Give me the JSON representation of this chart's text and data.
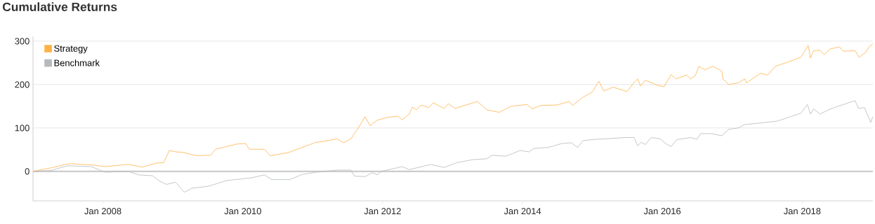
{
  "chart_data": {
    "type": "line",
    "title": "Cumulative Returns",
    "xlim": [
      "2007-01-01",
      "2019-01-05"
    ],
    "xticks": [
      {
        "value": "2008-01-01",
        "label": "Jan 2008"
      },
      {
        "value": "2010-01-01",
        "label": "Jan 2010"
      },
      {
        "value": "2012-01-01",
        "label": "Jan 2012"
      },
      {
        "value": "2014-01-01",
        "label": "Jan 2014"
      },
      {
        "value": "2016-01-01",
        "label": "Jan 2016"
      },
      {
        "value": "2018-01-01",
        "label": "Jan 2018"
      }
    ],
    "ylim": [
      -68,
      311
    ],
    "yticks": [
      0,
      100,
      200,
      300
    ],
    "grid": "y",
    "legend": "top left",
    "marker": "none",
    "line_style": "solid",
    "ref_lines": [
      {
        "axis": "y",
        "value": 0,
        "color": "#cccccc"
      }
    ],
    "series": [
      {
        "name": "Strategy",
        "color": "#ffb347",
        "x": [
          "2007-01-01",
          "2007-04-03",
          "2007-07-12",
          "2007-11-01",
          "2008-01-13",
          "2008-05-13",
          "2008-07-25",
          "2008-10-07",
          "2008-11-13",
          "2008-12-13",
          "2009-01-15",
          "2009-02-21",
          "2009-05-04",
          "2009-07-16",
          "2009-08-12",
          "2009-12-01",
          "2010-01-16",
          "2010-02-04",
          "2010-04-24",
          "2010-05-24",
          "2010-08-24",
          "2010-10-25",
          "2011-01-18",
          "2011-02-25",
          "2011-05-07",
          "2011-06-13",
          "2011-07-19",
          "2011-08-15",
          "2011-09-21",
          "2011-10-01",
          "2011-10-28",
          "2011-12-04",
          "2012-02-01",
          "2012-03-22",
          "2012-04-13",
          "2012-05-19",
          "2012-06-04",
          "2012-06-25",
          "2012-07-22",
          "2012-08-28",
          "2012-09-22",
          "2012-11-18",
          "2012-12-09",
          "2013-01-13",
          "2013-05-10",
          "2013-06-28",
          "2013-09-01",
          "2013-11-01",
          "2014-01-25",
          "2014-02-19",
          "2014-04-07",
          "2014-07-01",
          "2014-09-01",
          "2014-09-19",
          "2014-11-13",
          "2015-01-01",
          "2015-02-04",
          "2015-03-01",
          "2015-04-19",
          "2015-07-01",
          "2015-08-07",
          "2015-08-25",
          "2015-09-10",
          "2015-10-04",
          "2015-12-10",
          "2016-01-10",
          "2016-02-16",
          "2016-03-13",
          "2016-05-07",
          "2016-05-28",
          "2016-06-22",
          "2016-07-10",
          "2016-08-10",
          "2016-09-22",
          "2016-11-07",
          "2016-11-13",
          "2016-12-13",
          "2017-02-01",
          "2017-03-07",
          "2017-03-16",
          "2017-05-28",
          "2017-07-04",
          "2017-08-13",
          "2017-11-07",
          "2017-12-25",
          "2018-02-01",
          "2018-02-13",
          "2018-03-01",
          "2018-04-04",
          "2018-04-25",
          "2018-05-28",
          "2018-07-13",
          "2018-08-04",
          "2018-10-04",
          "2018-10-25",
          "2018-11-28",
          "2018-12-16",
          "2019-01-04"
        ],
        "values": [
          0,
          8,
          18,
          15,
          11,
          16,
          10,
          19,
          20,
          48,
          45,
          44,
          36,
          37,
          51,
          63,
          64,
          51,
          51,
          36,
          43,
          53,
          67,
          69,
          75,
          66,
          75,
          92,
          118,
          126,
          105,
          118,
          125,
          127,
          119,
          132,
          148,
          142,
          153,
          147,
          158,
          145,
          156,
          145,
          161,
          142,
          136,
          150,
          154,
          144,
          152,
          153,
          161,
          152,
          171,
          183,
          208,
          185,
          194,
          184,
          205,
          213,
          197,
          210,
          198,
          195,
          223,
          213,
          222,
          213,
          221,
          242,
          234,
          242,
          231,
          213,
          200,
          204,
          213,
          204,
          226,
          222,
          242,
          255,
          263,
          290,
          261,
          278,
          279,
          269,
          282,
          287,
          277,
          278,
          263,
          274,
          287,
          294
        ]
      },
      {
        "name": "Benchmark",
        "color": "#b4b9be",
        "x": [
          "2007-01-01",
          "2007-04-03",
          "2007-07-01",
          "2007-11-01",
          "2008-01-13",
          "2008-05-13",
          "2008-07-04",
          "2008-09-16",
          "2008-10-22",
          "2008-11-28",
          "2009-01-15",
          "2009-03-01",
          "2009-04-10",
          "2009-07-07",
          "2009-10-10",
          "2010-02-13",
          "2010-04-24",
          "2010-06-01",
          "2010-09-04",
          "2010-11-07",
          "2011-01-18",
          "2011-05-07",
          "2011-07-19",
          "2011-08-07",
          "2011-10-01",
          "2011-11-09",
          "2011-12-04",
          "2011-12-25",
          "2012-04-13",
          "2012-05-19",
          "2012-09-09",
          "2012-11-18",
          "2013-01-22",
          "2013-04-15",
          "2013-06-28",
          "2013-07-25",
          "2013-10-06",
          "2013-12-19",
          "2014-02-04",
          "2014-03-01",
          "2014-05-13",
          "2014-07-25",
          "2014-09-13",
          "2014-10-16",
          "2014-11-13",
          "2015-01-25",
          "2015-03-13",
          "2015-06-22",
          "2015-08-07",
          "2015-08-25",
          "2015-09-13",
          "2015-10-04",
          "2015-11-04",
          "2015-12-22",
          "2016-01-16",
          "2016-02-16",
          "2016-03-16",
          "2016-05-28",
          "2016-07-01",
          "2016-07-19",
          "2016-09-16",
          "2016-11-07",
          "2016-12-13",
          "2017-02-01",
          "2017-03-07",
          "2017-05-19",
          "2017-08-25",
          "2017-11-07",
          "2017-12-25",
          "2018-01-28",
          "2018-02-13",
          "2018-03-01",
          "2018-04-04",
          "2018-05-19",
          "2018-07-07",
          "2018-10-04",
          "2018-10-22",
          "2018-11-22",
          "2018-12-01",
          "2018-12-25",
          "2019-01-04"
        ],
        "values": [
          0,
          2,
          13,
          11,
          -2,
          0,
          -8,
          -10,
          -22,
          -30,
          -25,
          -48,
          -39,
          -34,
          -21,
          -15,
          -8,
          -19,
          -19,
          -7,
          -2,
          3,
          3,
          -11,
          -12,
          -3,
          -8,
          0,
          11,
          4,
          16,
          9,
          20,
          27,
          29,
          37,
          35,
          48,
          45,
          53,
          55,
          64,
          66,
          55,
          71,
          74,
          75,
          78,
          78,
          59,
          67,
          62,
          78,
          75,
          65,
          57,
          73,
          78,
          74,
          87,
          87,
          82,
          97,
          100,
          108,
          111,
          116,
          127,
          134,
          154,
          132,
          144,
          132,
          142,
          150,
          163,
          145,
          147,
          137,
          113,
          126
        ]
      }
    ]
  }
}
